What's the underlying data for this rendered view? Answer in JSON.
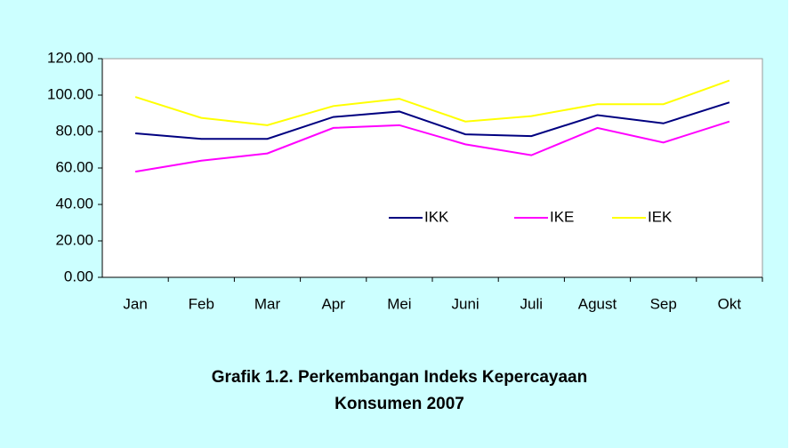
{
  "chart_data": {
    "type": "line",
    "title": "Grafik 1.2. Perkembangan Indeks Kepercayaan Konsumen 2007",
    "categories": [
      "Jan",
      "Feb",
      "Mar",
      "Apr",
      "Mei",
      "Juni",
      "Juli",
      "Agust",
      "Sep",
      "Okt"
    ],
    "series": [
      {
        "name": "IKK",
        "color": "#000080",
        "values": [
          79,
          76,
          76,
          88,
          91,
          78.5,
          77.5,
          89,
          84.5,
          96
        ]
      },
      {
        "name": "IKE",
        "color": "#ff00ff",
        "values": [
          58,
          64,
          68,
          82,
          83.5,
          73,
          67,
          82,
          74,
          85.5
        ]
      },
      {
        "name": "IEK",
        "color": "#ffff00",
        "values": [
          99,
          87.5,
          83.5,
          94,
          98,
          85.5,
          88.5,
          95,
          95,
          108
        ]
      }
    ],
    "ylim": [
      0,
      120
    ],
    "yticks": [
      {
        "value": 0,
        "label": "0.00"
      },
      {
        "value": 20,
        "label": "20.00"
      },
      {
        "value": 40,
        "label": "40.00"
      },
      {
        "value": 60,
        "label": "60.00"
      },
      {
        "value": 80,
        "label": "80.00"
      },
      {
        "value": 100,
        "label": "100.00"
      },
      {
        "value": 120,
        "label": "120.00"
      }
    ],
    "legend": "inside"
  }
}
